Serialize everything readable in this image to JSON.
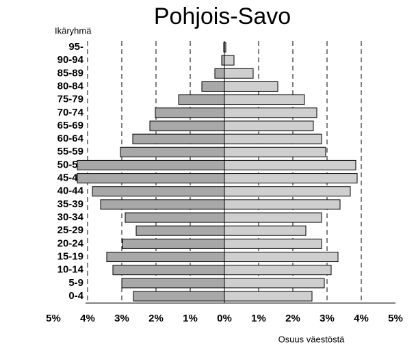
{
  "chart_data": {
    "type": "pyramid",
    "title": "Pohjois-Savo",
    "y_label": "Ikäryhmä",
    "x_label": "Osuus väestöstä",
    "categories": [
      "0-4",
      "5-9",
      "10-14",
      "15-19",
      "20-24",
      "25-29",
      "30-34",
      "35-39",
      "40-44",
      "45-49",
      "50-54",
      "55-59",
      "60-64",
      "65-69",
      "70-74",
      "75-79",
      "80-84",
      "85-89",
      "90-94",
      "95-"
    ],
    "series": [
      {
        "color": "#a8a8a8",
        "values": [
          2.66,
          3.0,
          3.26,
          3.44,
          2.98,
          2.58,
          2.9,
          3.62,
          3.86,
          4.3,
          4.3,
          3.04,
          2.68,
          2.18,
          2.02,
          1.34,
          0.66,
          0.28,
          0.08,
          0.02
        ]
      },
      {
        "color": "#cfcfcf",
        "values": [
          2.56,
          2.92,
          3.12,
          3.32,
          2.84,
          2.38,
          2.84,
          3.38,
          3.68,
          3.88,
          3.84,
          2.96,
          2.84,
          2.6,
          2.7,
          2.34,
          1.56,
          0.84,
          0.28,
          0.04
        ]
      }
    ],
    "xlim": [
      -5,
      5
    ],
    "xticks": [
      {
        "value": -5,
        "label": "5%"
      },
      {
        "value": -4,
        "label": "4%"
      },
      {
        "value": -3,
        "label": "3%"
      },
      {
        "value": -2,
        "label": "2%"
      },
      {
        "value": -1,
        "label": "1%"
      },
      {
        "value": 0,
        "label": "0%"
      },
      {
        "value": 1,
        "label": "1%"
      },
      {
        "value": 2,
        "label": "2%"
      },
      {
        "value": 3,
        "label": "3%"
      },
      {
        "value": 4,
        "label": "4%"
      },
      {
        "value": 5,
        "label": "5%"
      }
    ],
    "grid": true
  }
}
